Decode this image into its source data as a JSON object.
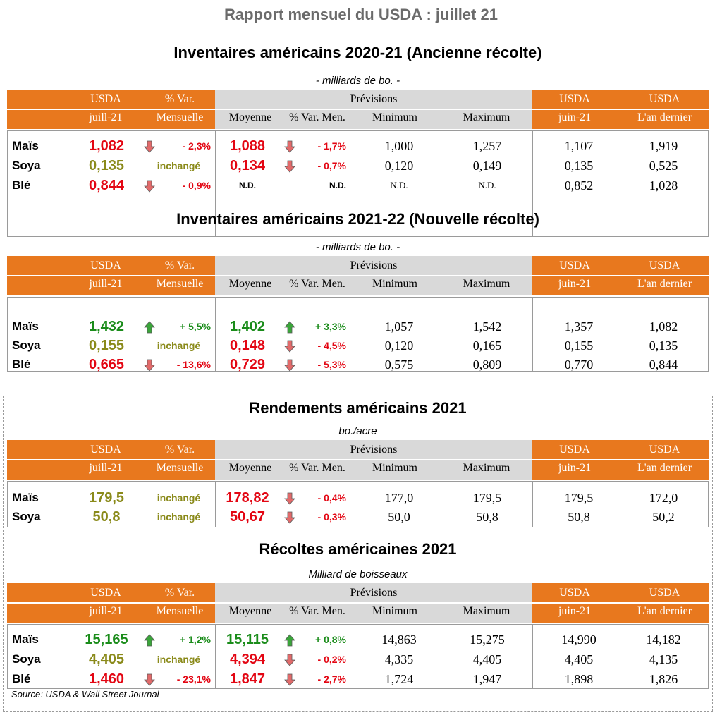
{
  "title": "Rapport mensuel du USDA : juillet 21",
  "header": {
    "usda": "USDA",
    "juill": "juill-21",
    "var": "% Var.",
    "mensuelle": "Mensuelle",
    "previsions": "Prévisions",
    "moyenne": "Moyenne",
    "var_men": "% Var. Men.",
    "minimum": "Minimum",
    "maximum": "Maximum",
    "juin": "juin-21",
    "lan_dernier": "L'an dernier"
  },
  "colors": {
    "orange": "#e8781e",
    "grey": "#d9d9d9",
    "red": "#e30613",
    "green": "#1a8c1a",
    "olive": "#8a8a1a"
  },
  "sections": [
    {
      "title": "Inventaires américains 2020-21 (Ancienne récolte)",
      "unit": "- milliards de bo. -",
      "rows": [
        {
          "label": "Maïs",
          "usda": "1,082",
          "usda_color": "red",
          "var_dir": "down",
          "var": "- 2,3%",
          "var_color": "red",
          "moy": "1,088",
          "moy_color": "red",
          "men_dir": "down",
          "men": "- 1,7%",
          "men_color": "red",
          "min": "1,000",
          "max": "1,257",
          "juin": "1,107",
          "last": "1,919"
        },
        {
          "label": "Soya",
          "usda": "0,135",
          "usda_color": "olive",
          "var_dir": "none",
          "var": "inchangé",
          "var_color": "olive",
          "moy": "0,134",
          "moy_color": "red",
          "men_dir": "down",
          "men": "- 0,7%",
          "men_color": "red",
          "min": "0,120",
          "max": "0,149",
          "juin": "0,135",
          "last": "0,525"
        },
        {
          "label": "Blé",
          "usda": "0,844",
          "usda_color": "red",
          "var_dir": "down",
          "var": "- 0,9%",
          "var_color": "red",
          "moy": "N.D.",
          "moy_color": "nd",
          "men_dir": "none",
          "men": "N.D.",
          "men_color": "nd",
          "min": "N.D.",
          "max": "N.D.",
          "juin": "0,852",
          "last": "1,028"
        }
      ]
    },
    {
      "title": "Inventaires américains 2021-22 (Nouvelle récolte)",
      "unit": "- milliards de bo. -",
      "rows": [
        {
          "label": "Maïs",
          "usda": "1,432",
          "usda_color": "green",
          "var_dir": "up",
          "var": "+ 5,5%",
          "var_color": "green",
          "moy": "1,402",
          "moy_color": "green",
          "men_dir": "up",
          "men": "+ 3,3%",
          "men_color": "green",
          "min": "1,057",
          "max": "1,542",
          "juin": "1,357",
          "last": "1,082"
        },
        {
          "label": "Soya",
          "usda": "0,155",
          "usda_color": "olive",
          "var_dir": "none",
          "var": "inchangé",
          "var_color": "olive",
          "moy": "0,148",
          "moy_color": "red",
          "men_dir": "down",
          "men": "- 4,5%",
          "men_color": "red",
          "min": "0,120",
          "max": "0,165",
          "juin": "0,155",
          "last": "0,135"
        },
        {
          "label": "Blé",
          "usda": "0,665",
          "usda_color": "red",
          "var_dir": "down",
          "var": "- 13,6%",
          "var_color": "red",
          "moy": "0,729",
          "moy_color": "red",
          "men_dir": "down",
          "men": "- 5,3%",
          "men_color": "red",
          "min": "0,575",
          "max": "0,809",
          "juin": "0,770",
          "last": "0,844"
        }
      ]
    },
    {
      "title": "Rendements américains 2021",
      "unit": "bo./acre",
      "rows": [
        {
          "label": "Maïs",
          "usda": "179,5",
          "usda_color": "olive",
          "var_dir": "none",
          "var": "inchangé",
          "var_color": "olive",
          "moy": "178,82",
          "moy_color": "red",
          "men_dir": "down",
          "men": "- 0,4%",
          "men_color": "red",
          "min": "177,0",
          "max": "179,5",
          "juin": "179,5",
          "last": "172,0"
        },
        {
          "label": "Soya",
          "usda": "50,8",
          "usda_color": "olive",
          "var_dir": "none",
          "var": "inchangé",
          "var_color": "olive",
          "moy": "50,67",
          "moy_color": "red",
          "men_dir": "down",
          "men": "- 0,3%",
          "men_color": "red",
          "min": "50,0",
          "max": "50,8",
          "juin": "50,8",
          "last": "50,2"
        }
      ]
    },
    {
      "title": "Récoltes américaines 2021",
      "unit": "Milliard de boisseaux",
      "rows": [
        {
          "label": "Maïs",
          "usda": "15,165",
          "usda_color": "green",
          "var_dir": "up",
          "var": "+ 1,2%",
          "var_color": "green",
          "moy": "15,115",
          "moy_color": "green",
          "men_dir": "up",
          "men": "+ 0,8%",
          "men_color": "green",
          "min": "14,863",
          "max": "15,275",
          "juin": "14,990",
          "last": "14,182"
        },
        {
          "label": "Soya",
          "usda": "4,405",
          "usda_color": "olive",
          "var_dir": "none",
          "var": "inchangé",
          "var_color": "olive",
          "moy": "4,394",
          "moy_color": "red",
          "men_dir": "down",
          "men": "- 0,2%",
          "men_color": "red",
          "min": "4,335",
          "max": "4,405",
          "juin": "4,405",
          "last": "4,135"
        },
        {
          "label": "Blé",
          "usda": "1,460",
          "usda_color": "red",
          "var_dir": "down",
          "var": "- 23,1%",
          "var_color": "red",
          "moy": "1,847",
          "moy_color": "red",
          "men_dir": "down",
          "men": "- 2,7%",
          "men_color": "red",
          "min": "1,724",
          "max": "1,947",
          "juin": "1,898",
          "last": "1,826"
        }
      ]
    }
  ],
  "source": "Source: USDA & Wall Street Journal"
}
